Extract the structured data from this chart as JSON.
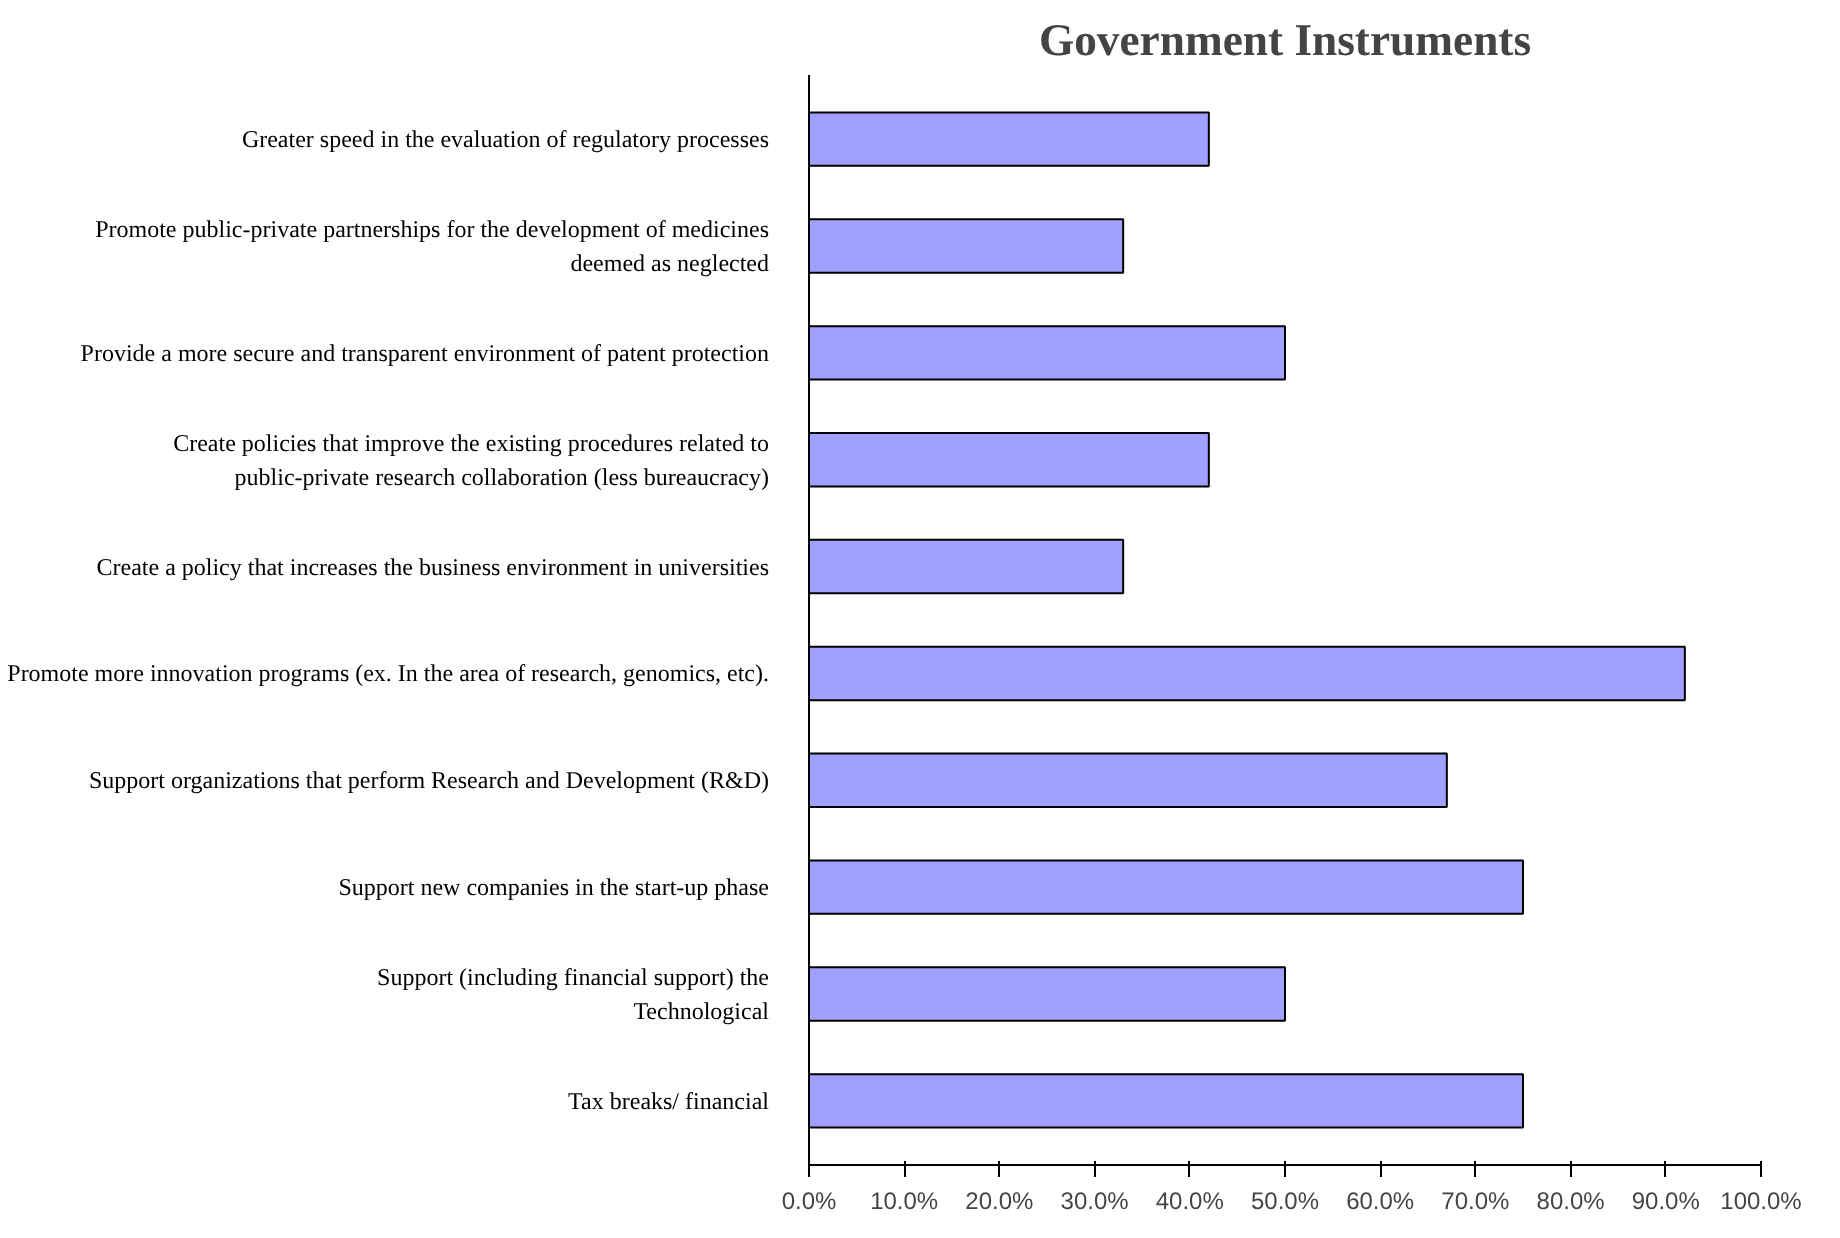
{
  "chart_data": {
    "type": "bar",
    "orientation": "horizontal",
    "title": "Government Instruments",
    "categories": [
      "Greater speed in the evaluation of regulatory processes",
      "Promote public-private partnerships for the development of medicines\ndeemed as neglected",
      "Provide a more secure and transparent environment of patent protection",
      "Create policies that improve the existing procedures related to\npublic-private research collaboration (less bureaucracy)",
      "Create a policy that increases the business environment in universities",
      "Promote more innovation programs (ex. In the area of research, genomics, etc).",
      "Support organizations that perform Research and Development (R&D)",
      "Support new companies in the start-up phase",
      "Support (including financial support) the\nTechnological",
      "Tax breaks/ financial"
    ],
    "values": [
      42,
      33,
      50,
      42,
      33,
      92,
      67,
      75,
      50,
      75
    ],
    "color": "#a0a0ff",
    "xlim": [
      0,
      100
    ],
    "xticks": [
      {
        "value": 0,
        "label": "0.0%"
      },
      {
        "value": 10,
        "label": "10.0%"
      },
      {
        "value": 20,
        "label": "20.0%"
      },
      {
        "value": 30,
        "label": "30.0%"
      },
      {
        "value": 40,
        "label": "40.0%"
      },
      {
        "value": 50,
        "label": "50.0%"
      },
      {
        "value": 60,
        "label": "60.0%"
      },
      {
        "value": 70,
        "label": "70.0%"
      },
      {
        "value": 80,
        "label": "80.0%"
      },
      {
        "value": 90,
        "label": "90.0%"
      },
      {
        "value": 100,
        "label": "100.0%"
      }
    ],
    "grid": false
  }
}
